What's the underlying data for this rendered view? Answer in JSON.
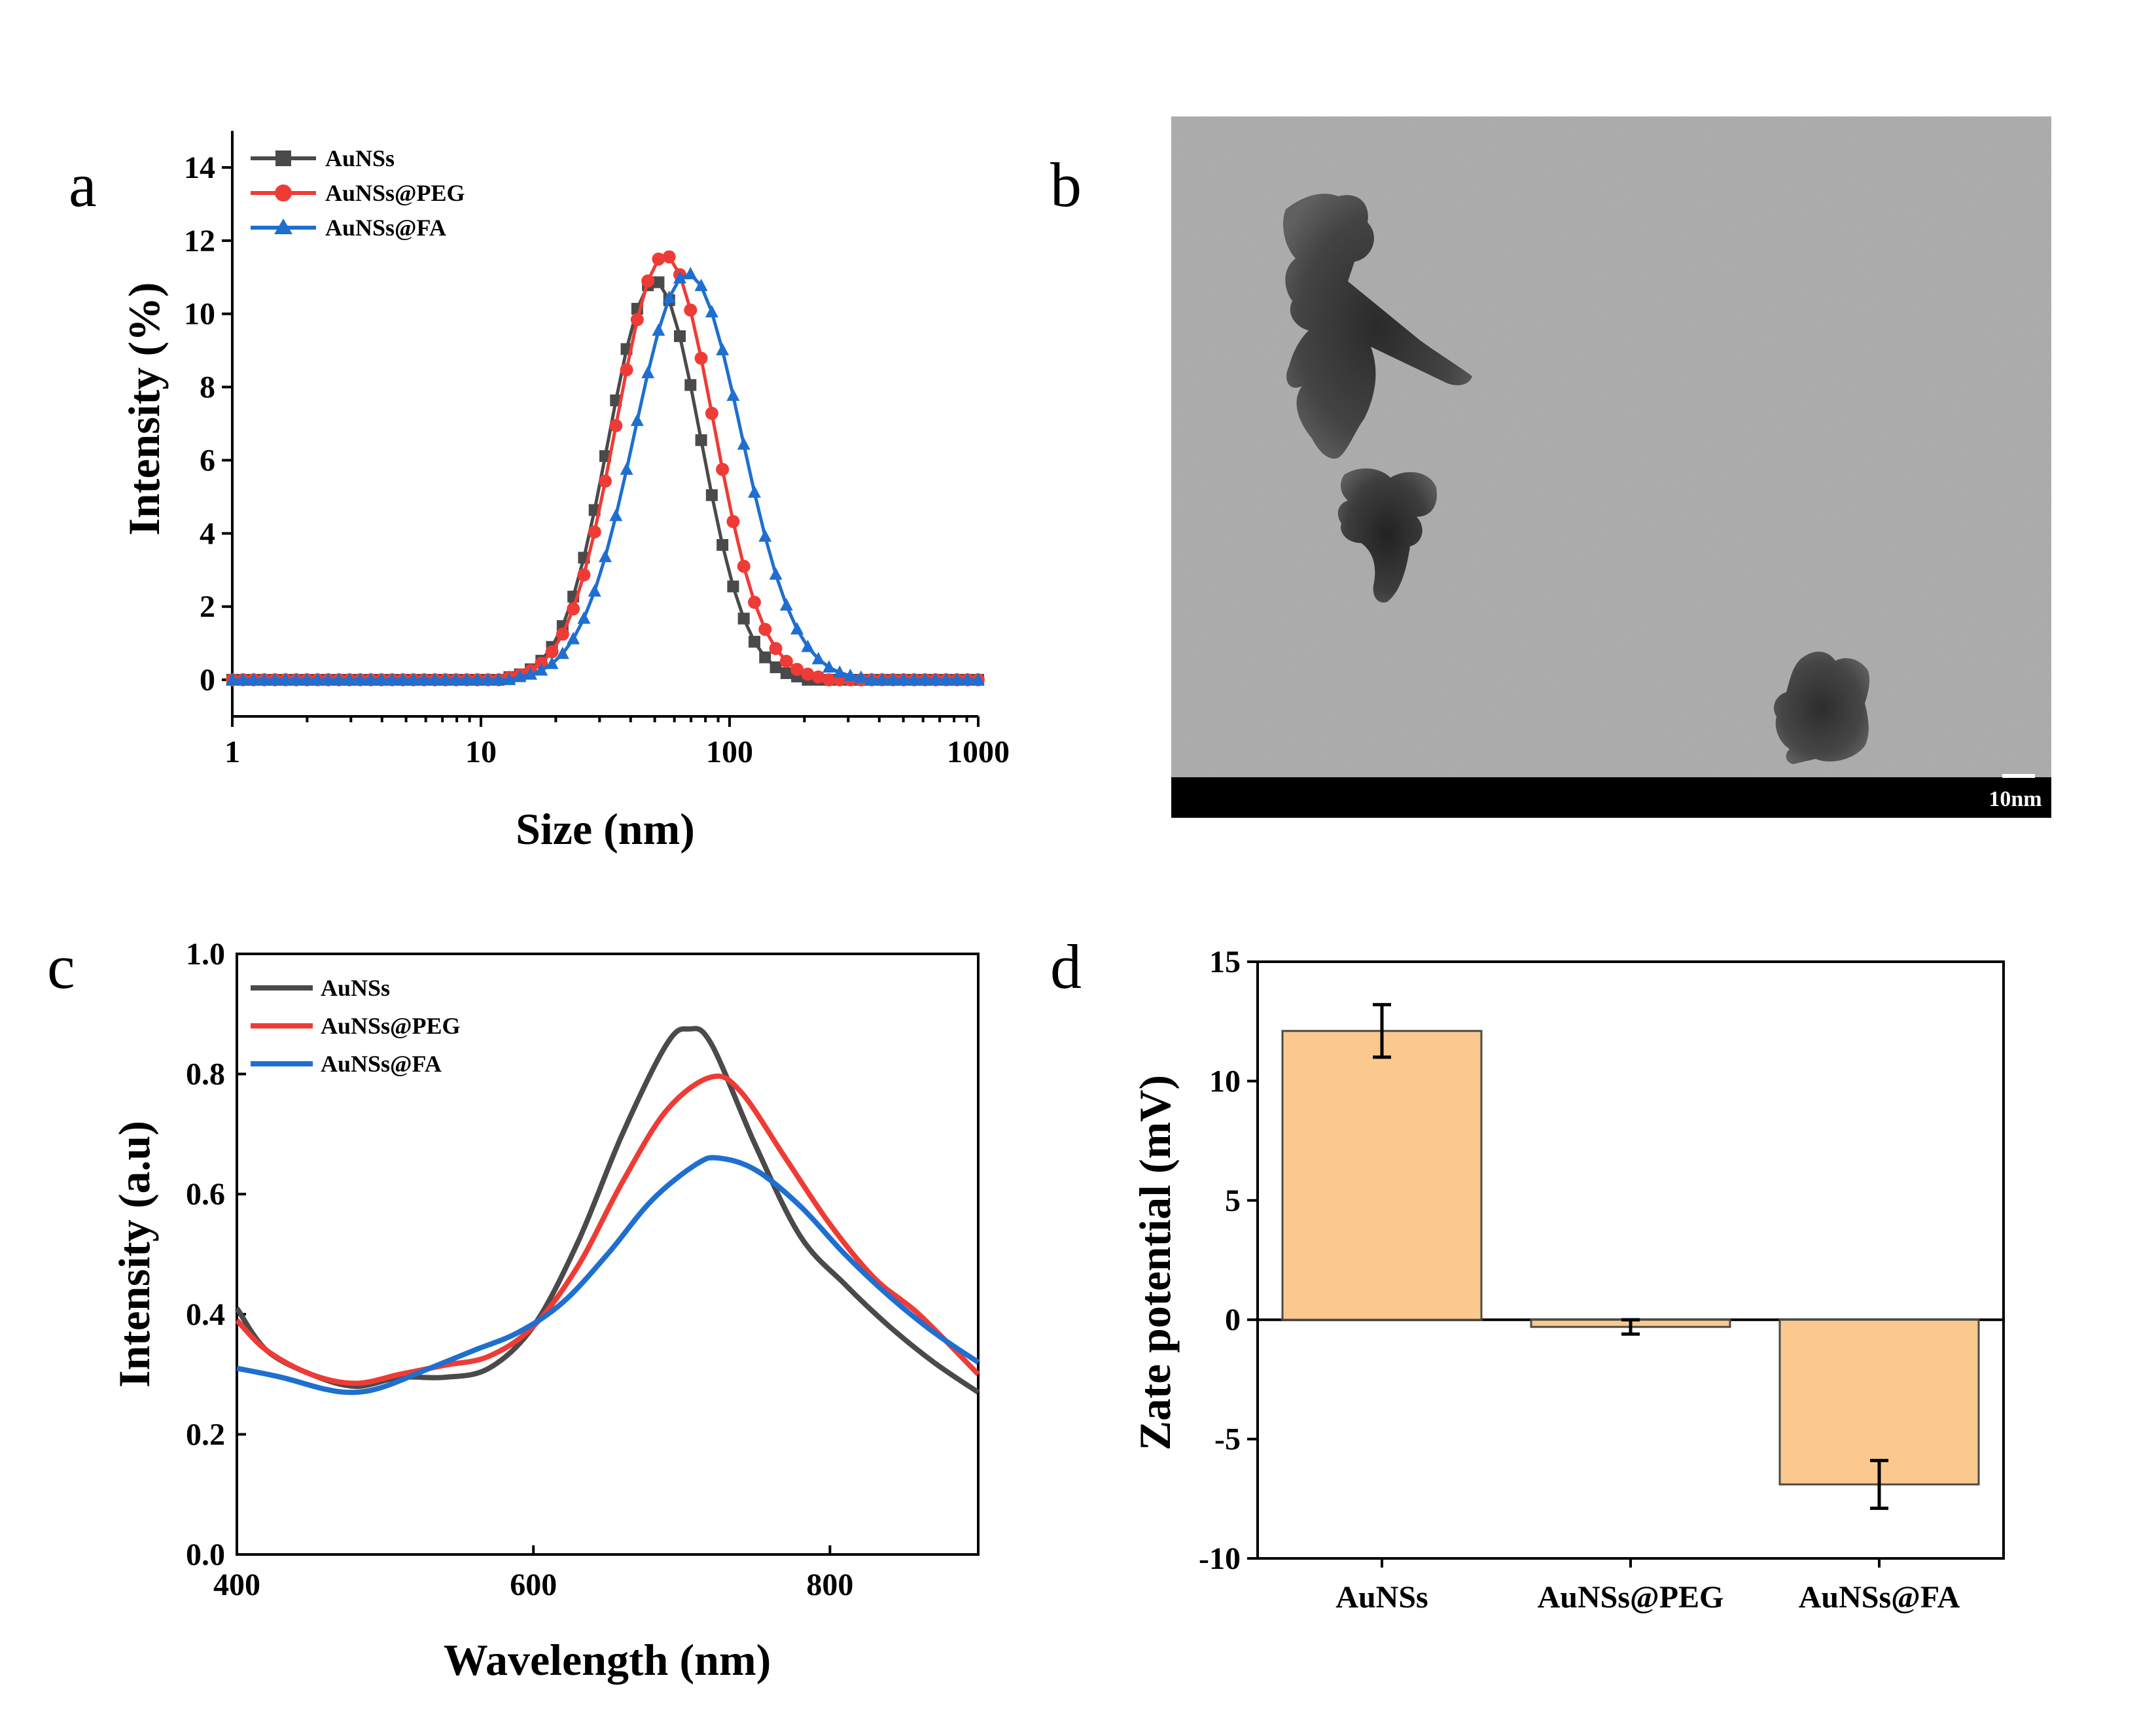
{
  "panels": {
    "a": {
      "letter": "a"
    },
    "b": {
      "letter": "b",
      "scale_bar_label": "10nm"
    },
    "c": {
      "letter": "c"
    },
    "d": {
      "letter": "d"
    }
  },
  "colors": {
    "AuNSs": "#4a4a4a",
    "AuNSs@PEG": "#ef3b36",
    "AuNSs@FA": "#1e6fd0",
    "bar_fill": "#fbc98e",
    "bar_stroke": "#4a4a4a",
    "tem_background": "#a9a9a9",
    "tem_particle": "#3a3a3a"
  },
  "chart_data": [
    {
      "panel": "a",
      "type": "line",
      "xscale": "log",
      "title": "",
      "xlabel": "Size (nm)",
      "ylabel": "Intensity (%)",
      "xlim": [
        1,
        1000
      ],
      "ylim": [
        -1,
        15
      ],
      "xticks": [
        1,
        10,
        100,
        1000
      ],
      "xtick_labels": [
        "1",
        "10",
        "100",
        "1000"
      ],
      "yticks": [
        0,
        2,
        4,
        6,
        8,
        10,
        12,
        14
      ],
      "ytick_labels": [
        "0",
        "2",
        "4",
        "6",
        "8",
        "10",
        "12",
        "14"
      ],
      "legend": "top-left",
      "series": [
        {
          "name": "AuNSs",
          "marker": "square",
          "center_nm": 50,
          "peak": 10.9,
          "log_sigma": 0.185
        },
        {
          "name": "AuNSs@PEG",
          "marker": "circle",
          "center_nm": 55,
          "peak": 11.6,
          "log_sigma": 0.195
        },
        {
          "name": "AuNSs@FA",
          "marker": "triangle",
          "center_nm": 68,
          "peak": 11.1,
          "log_sigma": 0.215
        }
      ]
    },
    {
      "panel": "c",
      "type": "line",
      "title": "",
      "xlabel": "Wavelength (nm)",
      "ylabel": "Intensity (a.u)",
      "xlim": [
        400,
        900
      ],
      "ylim": [
        0.0,
        1.0
      ],
      "xticks": [
        400,
        600,
        800
      ],
      "xtick_labels": [
        "400",
        "600",
        "800"
      ],
      "yticks": [
        0.0,
        0.2,
        0.4,
        0.6,
        0.8,
        1.0
      ],
      "ytick_labels": [
        "0.0",
        "0.2",
        "0.4",
        "0.6",
        "0.8",
        "1.0"
      ],
      "legend": "top-left",
      "series": [
        {
          "name": "AuNSs",
          "x": [
            400,
            420,
            450,
            480,
            510,
            540,
            570,
            600,
            630,
            660,
            690,
            705,
            720,
            750,
            780,
            810,
            840,
            870,
            900
          ],
          "y": [
            0.41,
            0.34,
            0.3,
            0.28,
            0.295,
            0.295,
            0.31,
            0.38,
            0.52,
            0.7,
            0.85,
            0.875,
            0.85,
            0.68,
            0.53,
            0.45,
            0.38,
            0.32,
            0.27
          ]
        },
        {
          "name": "AuNSs@PEG",
          "x": [
            400,
            420,
            450,
            480,
            510,
            540,
            570,
            600,
            630,
            660,
            690,
            720,
            740,
            770,
            800,
            830,
            860,
            900
          ],
          "y": [
            0.39,
            0.34,
            0.3,
            0.285,
            0.3,
            0.315,
            0.33,
            0.38,
            0.48,
            0.62,
            0.74,
            0.795,
            0.77,
            0.66,
            0.55,
            0.46,
            0.4,
            0.3
          ]
        },
        {
          "name": "AuNSs@FA",
          "x": [
            400,
            430,
            460,
            480,
            500,
            530,
            560,
            590,
            620,
            650,
            680,
            710,
            725,
            750,
            780,
            810,
            840,
            870,
            900
          ],
          "y": [
            0.31,
            0.295,
            0.275,
            0.27,
            0.28,
            0.31,
            0.34,
            0.37,
            0.42,
            0.5,
            0.59,
            0.65,
            0.66,
            0.64,
            0.58,
            0.5,
            0.43,
            0.37,
            0.32
          ]
        }
      ]
    },
    {
      "panel": "d",
      "type": "bar",
      "title": "",
      "xlabel": "",
      "ylabel": "Zate potential (mV)",
      "ylim": [
        -10,
        15
      ],
      "yticks": [
        -10,
        -5,
        0,
        5,
        10,
        15
      ],
      "ytick_labels": [
        "-10",
        "-5",
        "0",
        "5",
        "10",
        "15"
      ],
      "categories": [
        "AuNSs",
        "AuNSs@PEG",
        "AuNSs@FA"
      ],
      "values": [
        12.1,
        -0.3,
        -6.9
      ],
      "errors": [
        1.1,
        0.3,
        1.0
      ]
    }
  ]
}
